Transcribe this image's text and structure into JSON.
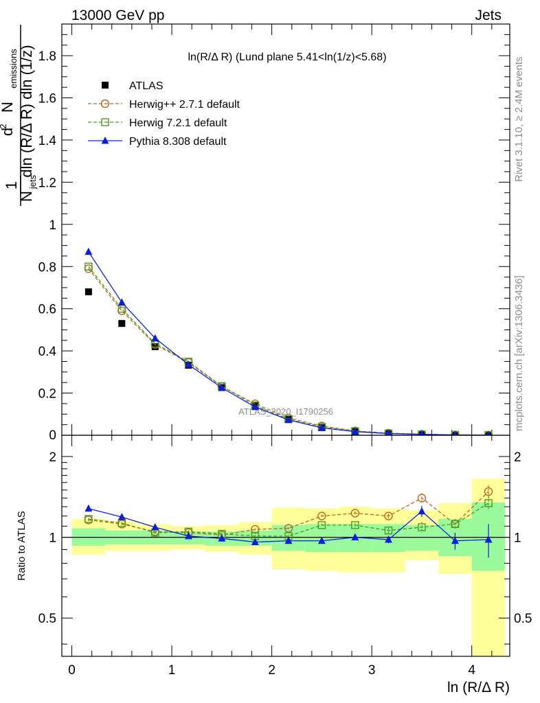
{
  "header": {
    "left": "13000 GeV pp",
    "right": "Jets",
    "side_top": "Rivet 3.1.10, ≥ 2.4M events",
    "side_bottom": "mcplots.cern.ch [arXiv:1306.3436]",
    "watermark": "ATLAS_2020_I1790256"
  },
  "chart_data": [
    {
      "type": "scatter",
      "title": "ln(R/Δ R) (Lund plane 5.41<ln(1/z)<5.68)",
      "ylabel_lines": [
        "1",
        "N",
        "jets",
        "dln (R/Δ R) dln (1/z)",
        "d",
        "2",
        "N",
        "emissions"
      ],
      "xlabel": "ln (R/Δ R)",
      "xlim": [
        -0.1,
        4.38
      ],
      "ylim": [
        0,
        1.95
      ],
      "yticks": [
        0.2,
        0.4,
        0.6,
        0.8,
        1.0,
        1.2,
        1.4,
        1.6,
        1.8
      ],
      "ytick_labels": [
        "0.2",
        "0.4",
        "0.6",
        "0.8",
        "1",
        "1.2",
        "1.4",
        "1.6",
        "1.8"
      ],
      "zero_label": "0",
      "legend_position": "top-left",
      "x": [
        0.167,
        0.5,
        0.833,
        1.167,
        1.5,
        1.833,
        2.167,
        2.5,
        2.833,
        3.167,
        3.5,
        3.833,
        4.167
      ],
      "series": [
        {
          "name": "ATLAS",
          "color": "#000000",
          "marker": "square-filled",
          "values": [
            0.68,
            0.53,
            0.42,
            0.332,
            0.226,
            0.14,
            0.075,
            0.036,
            0.017,
            0.008,
            0.0035,
            0.0015,
            0.0007
          ]
        },
        {
          "name": "Herwig++ 2.7.1 default",
          "color": "#b8651f",
          "marker": "circle-open",
          "dashed": true,
          "values": [
            0.79,
            0.59,
            0.43,
            0.345,
            0.231,
            0.149,
            0.082,
            0.044,
            0.021,
            0.01,
            0.005,
            0.0017,
            0.0011
          ]
        },
        {
          "name": "Herwig 7.2.1 default",
          "color": "#4a9a1c",
          "marker": "square-open",
          "dashed": true,
          "values": [
            0.8,
            0.6,
            0.435,
            0.349,
            0.233,
            0.141,
            0.076,
            0.04,
            0.019,
            0.009,
            0.004,
            0.0017,
            0.001
          ]
        },
        {
          "name": "Pythia 8.308 default",
          "color": "#0b1ee0",
          "marker": "triangle-filled",
          "values": [
            0.87,
            0.63,
            0.46,
            0.335,
            0.225,
            0.134,
            0.073,
            0.035,
            0.017,
            0.008,
            0.0044,
            0.0015,
            0.0007
          ]
        }
      ]
    },
    {
      "type": "scatter",
      "ylabel": "Ratio to ATLAS",
      "xlabel": "ln (R/Δ R)",
      "log_y": true,
      "ylim": [
        0.36,
        2.4
      ],
      "yticks": [
        0.5,
        1,
        2
      ],
      "ytick_labels": [
        "0.5",
        "1",
        "2"
      ],
      "xticks": [
        0,
        1,
        2,
        3,
        4
      ],
      "xtick_labels": [
        "0",
        "1",
        "2",
        "3",
        "4"
      ],
      "x": [
        0.167,
        0.5,
        0.833,
        1.167,
        1.5,
        1.833,
        2.167,
        2.5,
        2.833,
        3.167,
        3.5,
        3.833,
        4.167
      ],
      "bin_edges": [
        0.0,
        0.333,
        0.667,
        1.0,
        1.333,
        1.667,
        2.0,
        2.333,
        2.667,
        3.0,
        3.333,
        3.667,
        4.0,
        4.333
      ],
      "bands": {
        "yellow": {
          "color": "#ffff99",
          "lo": [
            0.86,
            0.89,
            0.89,
            0.9,
            0.88,
            0.86,
            0.76,
            0.75,
            0.74,
            0.74,
            0.82,
            0.73,
            0.33
          ],
          "hi": [
            1.17,
            1.15,
            1.12,
            1.1,
            1.11,
            1.14,
            1.29,
            1.28,
            1.3,
            1.28,
            1.26,
            1.34,
            1.65
          ]
        },
        "green": {
          "color": "#99f99b",
          "lo": [
            0.93,
            0.94,
            0.94,
            0.94,
            0.93,
            0.93,
            0.89,
            0.88,
            0.88,
            0.88,
            0.89,
            0.85,
            0.75
          ],
          "hi": [
            1.08,
            1.06,
            1.06,
            1.05,
            1.05,
            1.06,
            1.11,
            1.12,
            1.12,
            1.12,
            1.11,
            1.17,
            1.35
          ]
        }
      },
      "series": [
        {
          "name": "Herwig++ 2.7.1 default",
          "color": "#b8651f",
          "marker": "circle-open",
          "dashed": true,
          "values": [
            1.16,
            1.12,
            1.05,
            1.04,
            1.02,
            1.07,
            1.08,
            1.2,
            1.23,
            1.2,
            1.4,
            1.12,
            1.48
          ],
          "err": [
            0.01,
            0.01,
            0.01,
            0.01,
            0.01,
            0.01,
            0.01,
            0.015,
            0.02,
            0.025,
            0.06,
            0.05,
            0.08
          ]
        },
        {
          "name": "Herwig 7.2.1 default",
          "color": "#4a9a1c",
          "marker": "square-open",
          "dashed": true,
          "values": [
            1.17,
            1.13,
            1.04,
            1.05,
            1.03,
            1.01,
            1.01,
            1.11,
            1.11,
            1.06,
            1.09,
            1.12,
            1.34
          ],
          "err": [
            0.01,
            0.01,
            0.01,
            0.01,
            0.01,
            0.01,
            0.01,
            0.015,
            0.02,
            0.025,
            0.05,
            0.05,
            0.08
          ]
        },
        {
          "name": "Pythia 8.308 default",
          "color": "#0b1ee0",
          "marker": "triangle-filled",
          "values": [
            1.28,
            1.19,
            1.09,
            1.01,
            0.99,
            0.96,
            0.97,
            0.97,
            1.0,
            0.98,
            1.25,
            0.97,
            0.98
          ],
          "err": [
            0.01,
            0.01,
            0.01,
            0.01,
            0.01,
            0.01,
            0.01,
            0.015,
            0.02,
            0.03,
            0.06,
            0.07,
            0.14
          ]
        }
      ]
    }
  ]
}
